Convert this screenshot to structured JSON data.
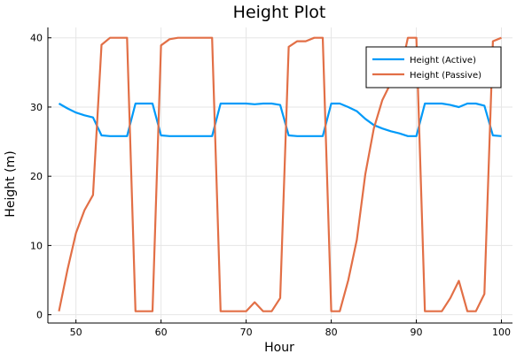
{
  "chart_data": {
    "type": "line",
    "title": "Height Plot",
    "xlabel": "Hour",
    "ylabel": "Height (m)",
    "xlim": [
      46.7,
      101.3
    ],
    "ylim": [
      -1.2,
      41.5
    ],
    "xticks": [
      50,
      60,
      70,
      80,
      90,
      100
    ],
    "yticks": [
      0,
      10,
      20,
      30,
      40
    ],
    "grid": true,
    "legend_position": "top-right",
    "series": [
      {
        "name": "Height (Active)",
        "color": "#009af9",
        "x": [
          48,
          49,
          50,
          51,
          52,
          53,
          54,
          55,
          56,
          57,
          58,
          59,
          60,
          61,
          62,
          63,
          64,
          65,
          66,
          67,
          68,
          69,
          70,
          71,
          72,
          73,
          74,
          75,
          76,
          77,
          78,
          79,
          80,
          81,
          82,
          83,
          84,
          85,
          86,
          87,
          88,
          89,
          90,
          91,
          92,
          93,
          94,
          95,
          96,
          97,
          98,
          99,
          100
        ],
        "y": [
          30.5,
          29.8,
          29.2,
          28.8,
          28.5,
          25.9,
          25.8,
          25.8,
          25.8,
          30.5,
          30.5,
          30.5,
          25.9,
          25.8,
          25.8,
          25.8,
          25.8,
          25.8,
          25.8,
          30.5,
          30.5,
          30.5,
          30.5,
          30.4,
          30.5,
          30.5,
          30.3,
          25.9,
          25.8,
          25.8,
          25.8,
          25.8,
          30.5,
          30.5,
          30.0,
          29.4,
          28.3,
          27.4,
          26.9,
          26.5,
          26.2,
          25.8,
          25.8,
          30.5,
          30.5,
          30.5,
          30.3,
          30.0,
          30.5,
          30.5,
          30.2,
          25.9,
          25.8
        ]
      },
      {
        "name": "Height (Passive)",
        "color": "#e26f46",
        "x": [
          48,
          49,
          50,
          51,
          52,
          53,
          54,
          55,
          56,
          57,
          58,
          59,
          60,
          61,
          62,
          63,
          64,
          65,
          66,
          67,
          68,
          69,
          70,
          71,
          72,
          73,
          74,
          75,
          76,
          77,
          78,
          79,
          80,
          81,
          82,
          83,
          84,
          85,
          86,
          87,
          88,
          89,
          90,
          91,
          92,
          93,
          94,
          95,
          96,
          97,
          98,
          99,
          100
        ],
        "y": [
          0.5,
          6.5,
          11.8,
          15.1,
          17.3,
          39.0,
          40.0,
          40.0,
          40.0,
          0.5,
          0.5,
          0.5,
          38.9,
          39.8,
          40.0,
          40.0,
          40.0,
          40.0,
          40.0,
          0.5,
          0.5,
          0.5,
          0.5,
          1.8,
          0.5,
          0.5,
          2.4,
          38.7,
          39.5,
          39.5,
          40.0,
          40.0,
          0.5,
          0.5,
          5.0,
          10.8,
          20.3,
          26.9,
          31.0,
          33.5,
          34.3,
          40.0,
          40.0,
          0.5,
          0.5,
          0.5,
          2.4,
          4.9,
          0.5,
          0.5,
          3.0,
          39.5,
          40.0
        ]
      }
    ]
  }
}
